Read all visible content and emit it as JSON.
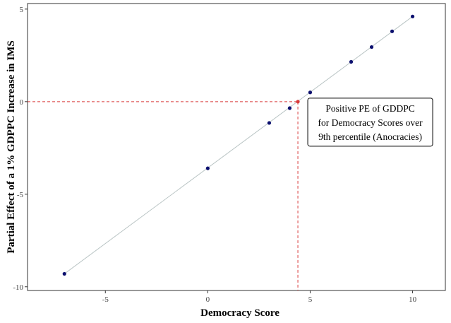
{
  "chart_data": {
    "type": "scatter",
    "xlabel": "Democracy Score",
    "ylabel": "Partial Effect of a 1% GDPPC Increase in IMS",
    "xlim": [
      -8.8,
      11.6
    ],
    "ylim": [
      -10.2,
      5.3
    ],
    "x_ticks": [
      -5,
      0,
      5,
      10
    ],
    "y_ticks": [
      -10,
      -5,
      0,
      5
    ],
    "grid": false,
    "points": [
      {
        "x": -7,
        "y": -9.3
      },
      {
        "x": 0,
        "y": -3.6
      },
      {
        "x": 3,
        "y": -1.15
      },
      {
        "x": 4,
        "y": -0.35
      },
      {
        "x": 5,
        "y": 0.5
      },
      {
        "x": 7,
        "y": 2.15
      },
      {
        "x": 8,
        "y": 2.95
      },
      {
        "x": 9,
        "y": 3.8
      },
      {
        "x": 10,
        "y": 4.6
      }
    ],
    "fit_line": {
      "x": [
        -7,
        10
      ],
      "y": [
        -9.3,
        4.6
      ]
    },
    "threshold_point": {
      "x": 4.4,
      "y": 0
    },
    "annotation_lines": [
      "Positive PE of GDDPC",
      "for Democracy Scores over",
      "9th percentile (Anocracies)"
    ],
    "colors": {
      "points": "#0b0f6e",
      "threshold": "#d93a3a",
      "fit_line": "#b9c4c4",
      "dashed": "#d93a3a"
    }
  }
}
